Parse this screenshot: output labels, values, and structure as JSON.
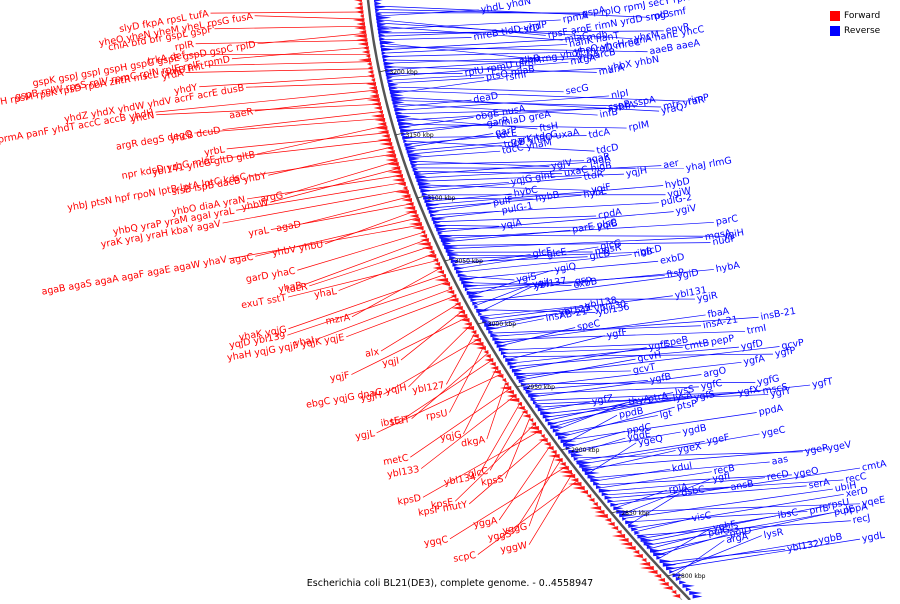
{
  "caption": "Escherichia coli BL21(DE3), complete genome. - 0..4558947",
  "legend": [
    {
      "label": "Forward",
      "color": "#ff0000"
    },
    {
      "label": "Reverse",
      "color": "#0000ff"
    }
  ],
  "colors": {
    "forward": "#ff0000",
    "reverse": "#0000ff",
    "backbone": "#555555"
  },
  "ruler_ticks": [
    "3200 kbp",
    "3150 kbp",
    "3100 kbp",
    "3050 kbp",
    "3000 kbp",
    "2950 kbp",
    "2900 kbp",
    "2850 kbp",
    "2800 kbp"
  ],
  "forward_labels": [
    "slyD fkpA rpsL tufA",
    "yheO yheN yheM yheL rpsG fusA",
    "chiA bfd bfr gspL gspF",
    "gspK gspJ gspI gspH gspG gspE gspD gspC rplD",
    "rplR",
    "gspB rplW rpsS rplV rpmC rplN rplE rplF rpmD",
    "trkA def",
    "rpsH rpsM rpsK rpsD rpoA zntR mscL rsmB fmt",
    "yrdA",
    "yhdY",
    "yhdZ yhdX yhdW yhdV acrF acrE dusB",
    "ydhU yhdJ fis prmA panF yhdT accC accB yhdH",
    "aaeR",
    "yhcN",
    "yhcB dcuD",
    "argR degS degQ",
    "ybl141 yhcG gltD gltB",
    "yrbL",
    "npr kdsD yrbG mlaE",
    "sfsB ispB dacB yhbY",
    "yhbJ ptsN hpf rpoN lptB lptA lptC kdsC",
    "argG",
    "yhbW",
    "yhbO diaA yraN",
    "yhbQ yraP yraM agaI yraL",
    "yraK yraJ yraH kbaY agaV",
    "agaD",
    "yraL",
    "yhbV yhbU",
    "agaC",
    "agaB agaS agaA agaF agaE agaW yhaV",
    "garD yhaC",
    "yhaB",
    "tdcR",
    "yhaL",
    "exuT sstT",
    "mzrA",
    "yhaK yqjG",
    "yqjD ybl139",
    "yhaI",
    "yhaH yqjG yqjF yqjK yqjE",
    "alx",
    "yqjI",
    "yqjF",
    "ebgC yqjG dnaG yqjH",
    "ybl127",
    "ygjH",
    "rpsU",
    "ttdT",
    "ibsE",
    "yqjG",
    "ygjL",
    "dkgA",
    "metC",
    "ybl133",
    "ybl134",
    "glcC",
    "kpsS",
    "kpsE",
    "kpsD",
    "kpsF mutY",
    "yggA",
    "yggG",
    "yggS",
    "ygqC",
    "yggW",
    "scpC"
  ],
  "reverse_labels": [
    "rplB",
    "gspA",
    "rplQ rpmJ secY rplO rpsE rplX",
    "yhdL yhdN",
    "rpsF aroE rimN yrdD smg smf",
    "yhcM",
    "mlaC",
    "rpmA",
    "envR",
    "csrD",
    "mreB tldD yhdP",
    "rng yhdE mreD mreC",
    "aaeB aaeA",
    "mdh",
    "nanK nanT",
    "yhcO yhcH nanA nanE yhcC",
    "elbB",
    "arcB",
    "murA",
    "yrbA",
    "rplU rpmU glmM",
    "mtgA",
    "yhbX yhbN",
    "ptsO mlaB",
    "secG",
    "rimP",
    "rsmI",
    "yraQ",
    "mtr yraR",
    "infB",
    "deaD",
    "nlpI",
    "rbfA",
    "ftsH",
    "sspB sspA",
    "rplM",
    "obgE nusA",
    "mlaD greA",
    "garR",
    "tdcA",
    "tdcD",
    "tdcE",
    "garP",
    "garK tdcG",
    "tdcB yhaO uxaA",
    "tdcC yhaM",
    "ygjV",
    "agaR",
    "yhaJ rlmG",
    "uxaC higB",
    "higA",
    "aer",
    "yqjH",
    "ygiF",
    "yqjG glnE",
    "ttdR",
    "ygiW",
    "hybB",
    "hybC",
    "hybD",
    "hybE",
    "pulF",
    "pulG-2",
    "pulG-1",
    "cpdA",
    "yqiA",
    "yqiB",
    "ygiV",
    "ygiH",
    "parC",
    "parE plsC",
    "nudF",
    "mqsA",
    "mqsR",
    "glcE",
    "glcD",
    "glcB",
    "glcF",
    "glcG",
    "ribB",
    "ygiS",
    "exbD",
    "exbB",
    "gsp",
    "ftsP",
    "hybA",
    "ygiQ",
    "ygiR",
    "ygiD",
    "ygiJ",
    "ybl136",
    "ybl137",
    "ybl138",
    "ybl131",
    "ybl130",
    "ybl129",
    "insAB-21",
    "insA-21",
    "insB-21",
    "trmI",
    "fbaA",
    "speC",
    "speB",
    "cmtB",
    "ygfP",
    "ygfF",
    "pepP",
    "ygfD",
    "ygfE",
    "gcvT",
    "gcvP",
    "gcvH",
    "ygfG",
    "ygfA",
    "ygfB",
    "ygfC",
    "argO",
    "mscS",
    "ygfY",
    "ygfX",
    "ygfZ",
    "ygfT",
    "ygfS",
    "lysS",
    "lysA",
    "ptrA",
    "thyA",
    "lgt",
    "ptsP",
    "ppdA",
    "ppdB",
    "ppdC",
    "ygdB",
    "ygdE",
    "ygeR",
    "ygeF",
    "ygeC",
    "ygeV",
    "ygeX",
    "ygeQ",
    "aas",
    "kdul",
    "ygeO",
    "recB",
    "recD",
    "recC",
    "ansB",
    "serA",
    "cmtA",
    "rpiA",
    "yqeE",
    "ygfI",
    "ubiH",
    "prfB",
    "dsbC",
    "xerD",
    "visC",
    "recJ",
    "ibsC",
    "rpsU",
    "pppA",
    "pulG-3",
    "pulE",
    "pulD",
    "yghF",
    "ybl132",
    "ygbB",
    "ygdL",
    "lysR",
    "argA"
  ]
}
